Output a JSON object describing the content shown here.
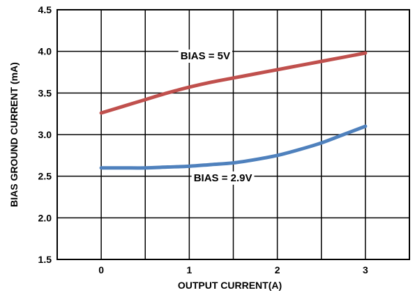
{
  "chart_data": {
    "type": "line",
    "xlabel": "OUTPUT CURRENT(A)",
    "ylabel": "BIAS GROUND CURRENT (mA)",
    "xlim": [
      -0.5,
      3.5
    ],
    "ylim": [
      1.5,
      4.5
    ],
    "xticks": [
      0,
      1,
      2,
      3
    ],
    "yticks": [
      1.5,
      2.0,
      2.5,
      3.0,
      3.5,
      4.0,
      4.5
    ],
    "xtick_labels": [
      "0",
      "1",
      "2",
      "3"
    ],
    "ytick_labels": [
      "1.5",
      "2.0",
      "2.5",
      "3.0",
      "3.5",
      "4.0",
      "4.5"
    ],
    "vertical_grid": [
      -0.5,
      0,
      0.5,
      1,
      1.5,
      2,
      2.5,
      3,
      3.5
    ],
    "horizontal_grid": [
      2.0,
      2.5,
      3.0,
      3.5,
      4.0
    ],
    "grid": true,
    "series": [
      {
        "name": "BIAS = 5V",
        "color": "#c0504d",
        "x": [
          0,
          0.25,
          0.5,
          0.75,
          1.0,
          1.25,
          1.5,
          1.75,
          2.0,
          2.25,
          2.5,
          2.75,
          3.0
        ],
        "y": [
          3.26,
          3.34,
          3.42,
          3.5,
          3.57,
          3.63,
          3.68,
          3.73,
          3.78,
          3.83,
          3.88,
          3.93,
          3.98
        ]
      },
      {
        "name": "BIAS = 2.9V",
        "color": "#4f81bd",
        "x": [
          0,
          0.25,
          0.5,
          0.75,
          1.0,
          1.25,
          1.5,
          1.75,
          2.0,
          2.25,
          2.5,
          2.75,
          3.0
        ],
        "y": [
          2.6,
          2.6,
          2.6,
          2.61,
          2.62,
          2.64,
          2.66,
          2.7,
          2.75,
          2.82,
          2.9,
          3.0,
          3.1
        ]
      }
    ],
    "annotations": [
      {
        "text": "BIAS = 5V",
        "x": 0.9,
        "y": 3.905,
        "anchor": "start"
      },
      {
        "text": "BIAS = 2.9V",
        "x": 1.05,
        "y": 2.44,
        "anchor": "start"
      }
    ]
  }
}
